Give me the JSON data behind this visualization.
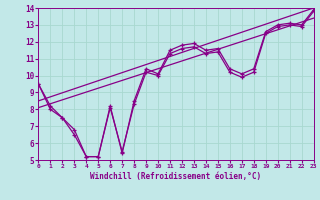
{
  "xlabel": "Windchill (Refroidissement éolien,°C)",
  "xlim": [
    0,
    23
  ],
  "ylim": [
    5,
    14
  ],
  "xticks": [
    0,
    1,
    2,
    3,
    4,
    5,
    6,
    7,
    8,
    9,
    10,
    11,
    12,
    13,
    14,
    15,
    16,
    17,
    18,
    19,
    20,
    21,
    22,
    23
  ],
  "yticks": [
    5,
    6,
    7,
    8,
    9,
    10,
    11,
    12,
    13,
    14
  ],
  "bg_color": "#c2e8e8",
  "line_color": "#880088",
  "grid_color": "#a8d8d0",
  "trend1_x": [
    0,
    23
  ],
  "trend1_y": [
    8.1,
    13.4
  ],
  "trend2_x": [
    0,
    23
  ],
  "trend2_y": [
    8.5,
    14.0
  ],
  "series1_x": [
    0,
    1,
    2,
    3,
    4,
    5,
    6,
    7,
    8,
    9,
    10,
    11,
    12,
    13,
    14,
    15,
    16,
    17,
    18,
    19,
    20,
    21,
    22,
    23
  ],
  "series1_y": [
    9.5,
    8.2,
    7.5,
    6.8,
    5.2,
    5.2,
    8.2,
    5.4,
    8.5,
    10.4,
    10.1,
    11.5,
    11.8,
    11.9,
    11.5,
    11.6,
    10.4,
    10.1,
    10.4,
    12.6,
    13.0,
    13.1,
    13.0,
    13.9
  ],
  "series2_x": [
    0,
    1,
    2,
    3,
    4,
    5,
    6,
    7,
    8,
    9,
    10,
    11,
    12,
    13,
    14,
    15,
    16,
    17,
    18,
    19,
    20,
    21,
    22,
    23
  ],
  "series2_y": [
    9.5,
    8.0,
    7.5,
    6.5,
    5.2,
    5.2,
    8.1,
    5.5,
    8.3,
    10.2,
    10.0,
    11.3,
    11.6,
    11.7,
    11.3,
    11.4,
    10.2,
    9.9,
    10.2,
    12.5,
    12.9,
    13.0,
    12.9,
    13.8
  ]
}
